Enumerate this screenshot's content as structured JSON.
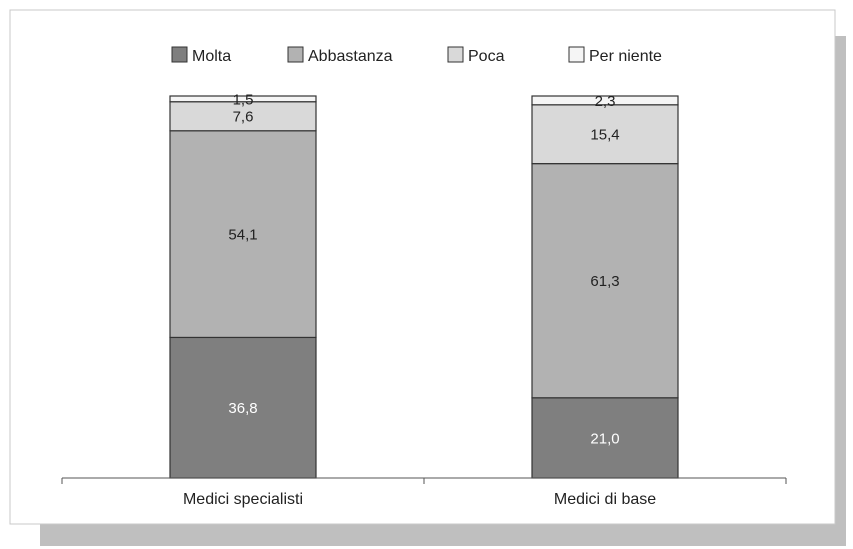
{
  "chart_data": {
    "type": "bar",
    "stacked": true,
    "categories": [
      "Medici specialisti",
      "Medici di base"
    ],
    "series": [
      {
        "name": "Molta",
        "values": [
          36.8,
          21.0
        ],
        "labels": [
          "36,8",
          "21,0"
        ],
        "color": "#7f7f7f",
        "label_color": "#ffffff"
      },
      {
        "name": "Abbastanza",
        "values": [
          54.1,
          61.3
        ],
        "labels": [
          "54,1",
          "61,3"
        ],
        "color": "#b2b2b2",
        "label_color": "#222222"
      },
      {
        "name": "Poca",
        "values": [
          7.6,
          15.4
        ],
        "labels": [
          "7,6",
          "15,4"
        ],
        "color": "#d9d9d9",
        "label_color": "#222222"
      },
      {
        "name": "Per niente",
        "values": [
          1.5,
          2.3
        ],
        "labels": [
          "1,5",
          "2,3"
        ],
        "color": "#f5f5f5",
        "label_color": "#222222"
      }
    ],
    "ylim": [
      0,
      100
    ],
    "legend": "top",
    "grid": false,
    "title": "",
    "xlabel": "",
    "ylabel": ""
  }
}
